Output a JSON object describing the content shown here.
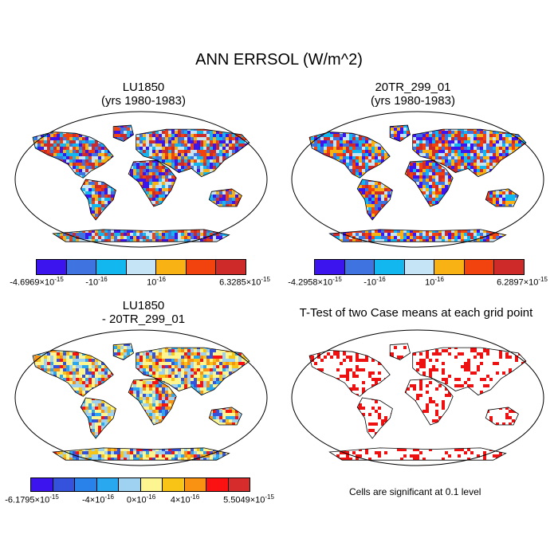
{
  "title": "ANN ERRSOL (W/m^2)",
  "panels": {
    "p1": {
      "title1": "LU1850",
      "title2": "(yrs 1980-1983)"
    },
    "p2": {
      "title1": "20TR_299_01",
      "title2": "(yrs 1980-1983)"
    },
    "p3": {
      "title1": "LU1850",
      "title2": "- 20TR_299_01"
    },
    "p4": {
      "title1": "T-Test of two Case means at each grid point"
    }
  },
  "colorbars": {
    "cb1": {
      "colors": [
        "#3b14ee",
        "#3f74e0",
        "#13b7ef",
        "#c5e4f5",
        "#f8b214",
        "#f2420e",
        "#cf2a2a"
      ],
      "labels": [
        "-4.6969×10^-15",
        "-10^-16",
        "10^-16",
        "6.3285×10^-15"
      ]
    },
    "cb2": {
      "colors": [
        "#3b14ee",
        "#3f74e0",
        "#13b7ef",
        "#c5e4f5",
        "#f8b214",
        "#f2420e",
        "#cf2a2a"
      ],
      "labels": [
        "-4.2958×10^-15",
        "-10^-16",
        "10^-16",
        "6.2897×10^-15"
      ]
    },
    "cb3": {
      "colors": [
        "#3b14ee",
        "#3552dc",
        "#2882ea",
        "#2aa8ef",
        "#9ed2f0",
        "#fdf690",
        "#f8c416",
        "#f99212",
        "#fa1111",
        "#d62c2c"
      ],
      "labels": [
        "-6.1795×10^-15",
        "-4×10^-16",
        "0×10^-16",
        "4×10^-16",
        "5.5049×10^-15"
      ]
    }
  },
  "significance_note": "Cells are significant at 0.1 level"
}
